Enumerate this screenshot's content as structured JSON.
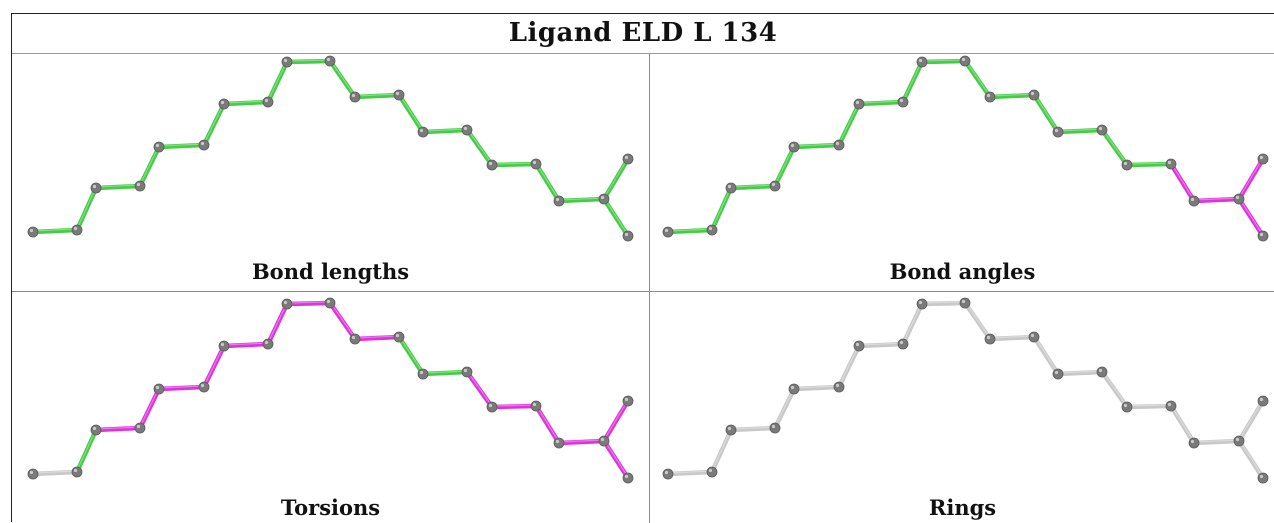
{
  "title": "Ligand ELD L 134",
  "panels": [
    {
      "label": "Bond lengths",
      "colors": [
        "g",
        "g",
        "g",
        "g",
        "g",
        "g",
        "g",
        "g",
        "g",
        "g",
        "g",
        "g",
        "g",
        "g",
        "g",
        "g",
        "g",
        "g",
        "g",
        "g",
        "g",
        "g",
        "g"
      ]
    },
    {
      "label": "Bond angles",
      "colors": [
        "g",
        "g",
        "g",
        "g",
        "g",
        "g",
        "g",
        "g",
        "g",
        "g",
        "g",
        "g",
        "g",
        "g",
        "g",
        "m",
        "m",
        "m",
        "m",
        "m",
        "m",
        "m",
        "g"
      ]
    },
    {
      "label": "Torsions",
      "colors": [
        "s",
        "g",
        "m",
        "m",
        "m",
        "m",
        "m",
        "m",
        "m",
        "m",
        "m",
        "g",
        "g",
        "m",
        "m",
        "m",
        "m",
        "m",
        "m",
        "g",
        "g",
        "g",
        "s"
      ]
    },
    {
      "label": "Rings",
      "colors": [
        "s",
        "s",
        "s",
        "s",
        "s",
        "s",
        "s",
        "s",
        "s",
        "s",
        "s",
        "s",
        "s",
        "s",
        "s",
        "s",
        "s",
        "s",
        "s",
        "s",
        "s",
        "s",
        "s"
      ]
    }
  ],
  "colors": {
    "g": "#44cc44",
    "m": "#dd33dd",
    "s": "#c8c8c8",
    "atom": "#7a7a7a"
  }
}
